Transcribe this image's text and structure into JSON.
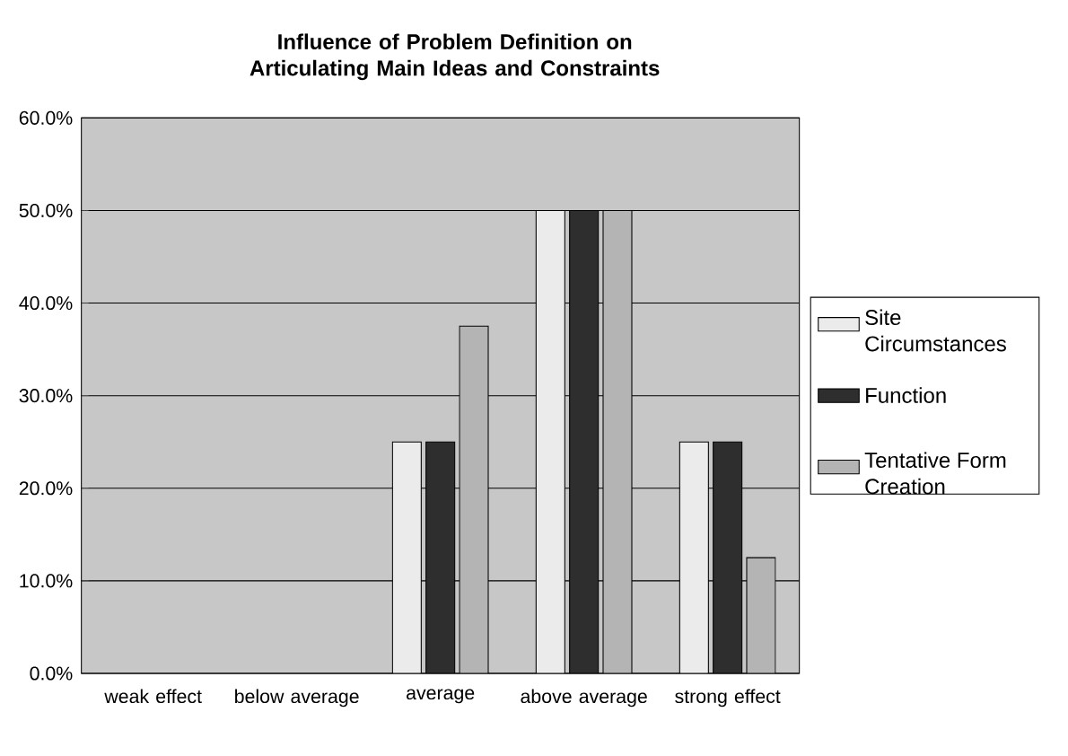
{
  "chart_data": {
    "type": "bar",
    "title": "Influence of Problem Definition on Articulating Main Ideas and Constraints",
    "categories": [
      "weak effect",
      "below average",
      "average",
      "above average",
      "strong effect"
    ],
    "series": [
      {
        "name": "Site Circumstances",
        "color": "#ebebeb",
        "values": [
          null,
          null,
          25,
          50,
          25
        ]
      },
      {
        "name": "Function",
        "color": "#2e2e2e",
        "values": [
          null,
          null,
          25,
          50,
          25
        ]
      },
      {
        "name": "Tentative Form Creation",
        "color": "#b4b4b4",
        "values": [
          null,
          null,
          37.5,
          50,
          12.5
        ]
      }
    ],
    "ylim": [
      0,
      60
    ],
    "yticks": [
      {
        "value": 0,
        "label": "0.0%"
      },
      {
        "value": 10,
        "label": "10.0%"
      },
      {
        "value": 20,
        "label": "20.0%"
      },
      {
        "value": 30,
        "label": "30.0%"
      },
      {
        "value": 40,
        "label": "40.0%"
      },
      {
        "value": 50,
        "label": "50.0%"
      },
      {
        "value": 60,
        "label": "60.0%"
      }
    ],
    "grid": "y",
    "legend": "right"
  }
}
